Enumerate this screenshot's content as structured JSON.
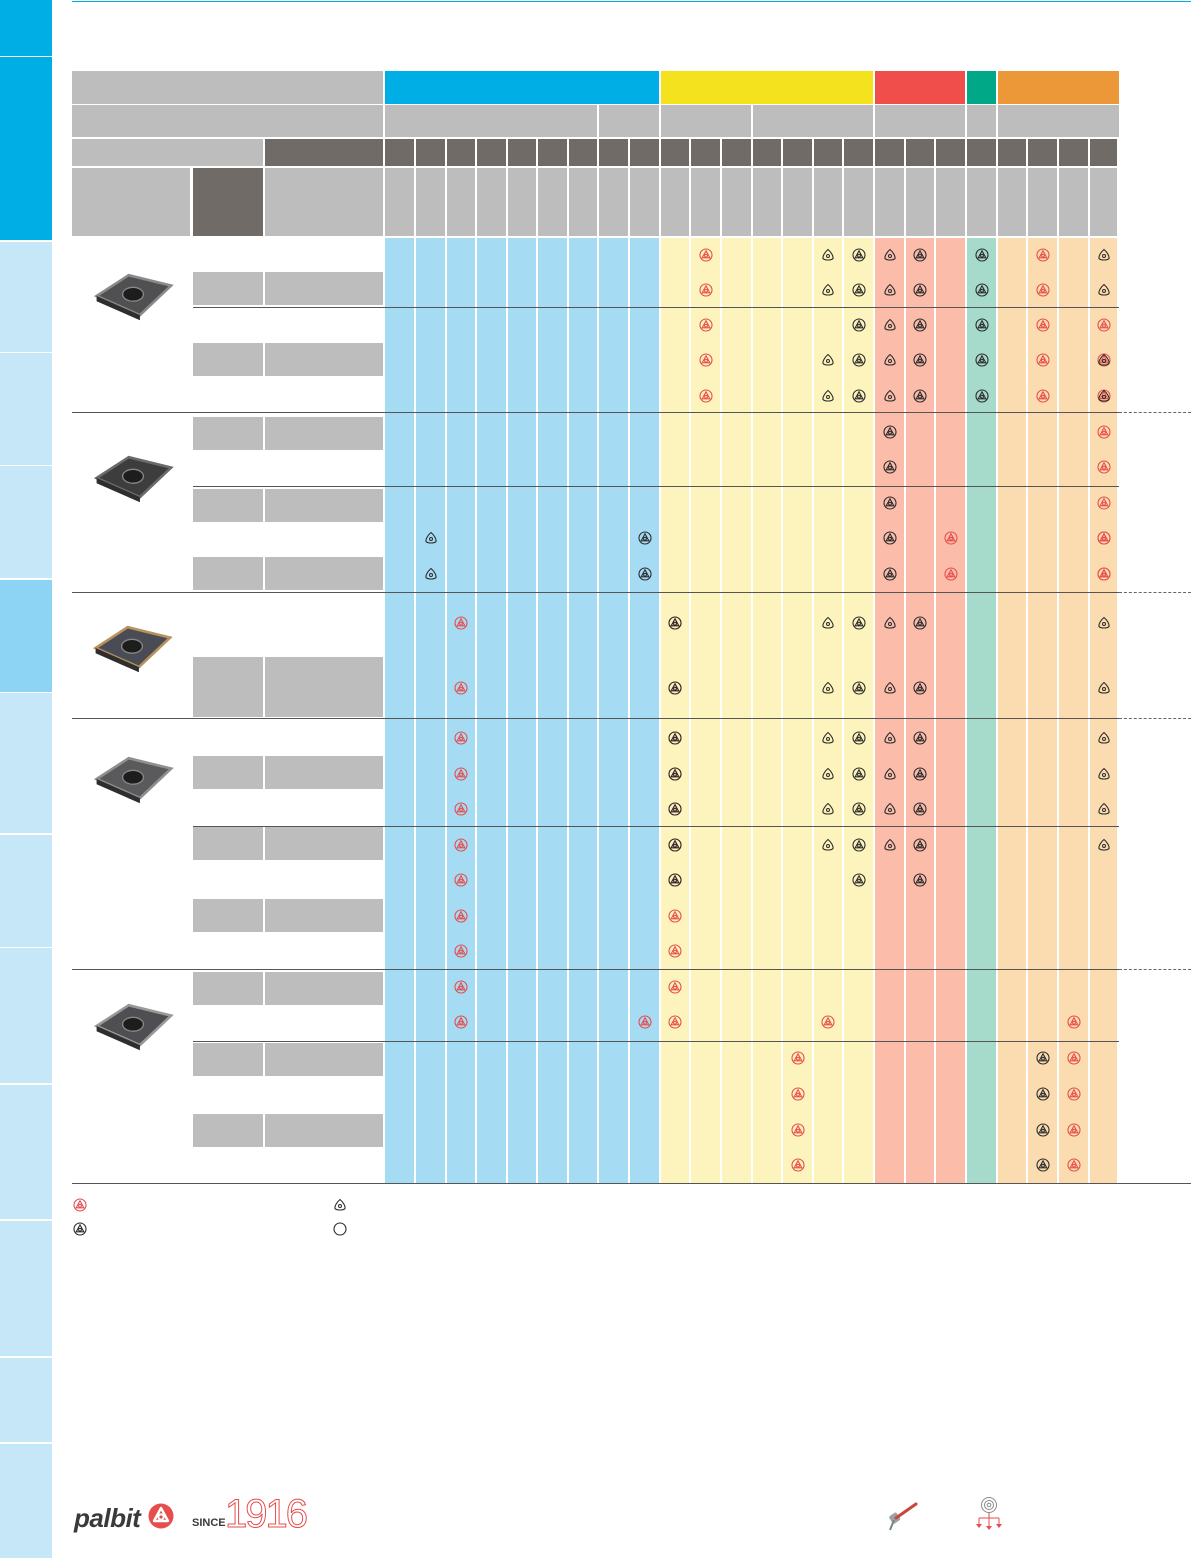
{
  "colors": {
    "side_tab_active": "#00aee6",
    "side_tab_light": "#c6e7f8",
    "side_tab_selected": "#8dd3f3",
    "group_P": "#00aee6",
    "group_M": "#f5e21e",
    "group_K": "#ef4e4b",
    "group_N": "#00a887",
    "group_S": "#ed9838",
    "body_P": "#a6dbf4",
    "body_M": "#fdf4bd",
    "body_K": "#fbbcaa",
    "body_N": "#a6dacb",
    "body_S": "#fbdcb0",
    "symbol_red": "#e64d4d",
    "symbol_black": "#2b2b2b",
    "row_separator": "#555555"
  },
  "grade_matrix": {
    "first_choice_red": [
      [
        10,
        0
      ],
      [
        10,
        1
      ],
      [
        10,
        2
      ],
      [
        10,
        3
      ],
      [
        10,
        4
      ],
      [
        21,
        0
      ],
      [
        21,
        1
      ],
      [
        21,
        2
      ],
      [
        21,
        3
      ],
      [
        21,
        4
      ],
      [
        23,
        2
      ],
      [
        23,
        3
      ],
      [
        23,
        4
      ],
      [
        23,
        5
      ],
      [
        23,
        6
      ],
      [
        23,
        7
      ],
      [
        23,
        8
      ],
      [
        23,
        9
      ],
      [
        9,
        10
      ],
      [
        9,
        11
      ],
      [
        9,
        12
      ],
      [
        9,
        13
      ],
      [
        9,
        14
      ],
      [
        9,
        15
      ],
      [
        9,
        16
      ],
      [
        9,
        17
      ],
      [
        9,
        18
      ],
      [
        9,
        19
      ],
      [
        9,
        20
      ],
      [
        24,
        14
      ],
      [
        24,
        15
      ],
      [
        24,
        16
      ],
      [
        24,
        17
      ],
      [
        24,
        18
      ],
      [
        24,
        19
      ],
      [
        24,
        20
      ],
      [
        2,
        10
      ],
      [
        2,
        11
      ],
      [
        2,
        12
      ],
      [
        2,
        13
      ],
      [
        2,
        14
      ],
      [
        2,
        15
      ],
      [
        2,
        16
      ],
      [
        2,
        17
      ],
      [
        2,
        18
      ],
      [
        2,
        19
      ],
      [
        2,
        20
      ],
      [
        18,
        8
      ],
      [
        18,
        9
      ],
      [
        23,
        8
      ],
      [
        23,
        9
      ],
      [
        8,
        20
      ],
      [
        14,
        20
      ],
      [
        22,
        20
      ],
      [
        13,
        21
      ],
      [
        13,
        22
      ],
      [
        13,
        23
      ],
      [
        13,
        24
      ],
      [
        13,
        25
      ],
      [
        22,
        21
      ],
      [
        22,
        22
      ],
      [
        22,
        23
      ],
      [
        22,
        24
      ],
      [
        22,
        25
      ],
      [
        22,
        26
      ]
    ],
    "black_recommended": [
      [
        15,
        0
      ],
      [
        15,
        1
      ],
      [
        15,
        2
      ],
      [
        15,
        3
      ],
      [
        15,
        4
      ],
      [
        24,
        0
      ],
      [
        24,
        1
      ],
      [
        24,
        2
      ],
      [
        24,
        3
      ],
      [
        24,
        4
      ],
      [
        17,
        0
      ],
      [
        17,
        1
      ],
      [
        17,
        2
      ],
      [
        17,
        3
      ],
      [
        17,
        4
      ],
      [
        19,
        0
      ],
      [
        19,
        1
      ],
      [
        19,
        2
      ],
      [
        19,
        3
      ],
      [
        19,
        4
      ],
      [
        16,
        5
      ],
      [
        16,
        6
      ],
      [
        16,
        7
      ],
      [
        16,
        8
      ],
      [
        16,
        9
      ],
      [
        8,
        8
      ],
      [
        8,
        9
      ],
      [
        9,
        10
      ],
      [
        9,
        11
      ],
      [
        9,
        12
      ],
      [
        9,
        13
      ],
      [
        9,
        14
      ],
      [
        9,
        15
      ],
      [
        9,
        16
      ],
      [
        15,
        10
      ],
      [
        15,
        11
      ],
      [
        15,
        12
      ],
      [
        15,
        13
      ],
      [
        15,
        14
      ],
      [
        15,
        15
      ],
      [
        15,
        16
      ],
      [
        17,
        10
      ],
      [
        17,
        11
      ],
      [
        17,
        12
      ],
      [
        17,
        13
      ],
      [
        17,
        14
      ],
      [
        17,
        15
      ],
      [
        17,
        16
      ],
      [
        21,
        21
      ],
      [
        21,
        22
      ],
      [
        21,
        23
      ],
      [
        21,
        24
      ],
      [
        21,
        25
      ],
      [
        21,
        26
      ]
    ],
    "alternative_outline": [
      [
        14,
        0
      ],
      [
        14,
        1
      ],
      [
        14,
        3
      ],
      [
        14,
        4
      ],
      [
        16,
        0
      ],
      [
        16,
        1
      ],
      [
        16,
        2
      ],
      [
        16,
        3
      ],
      [
        16,
        4
      ],
      [
        23,
        0
      ],
      [
        23,
        1
      ],
      [
        23,
        3
      ],
      [
        23,
        4
      ],
      [
        25,
        0
      ],
      [
        25,
        1
      ],
      [
        25,
        2
      ],
      [
        25,
        3
      ],
      [
        25,
        4
      ],
      [
        1,
        8
      ],
      [
        1,
        9
      ],
      [
        14,
        10
      ],
      [
        14,
        11
      ],
      [
        14,
        12
      ],
      [
        14,
        13
      ],
      [
        14,
        14
      ],
      [
        14,
        15
      ],
      [
        16,
        10
      ],
      [
        16,
        11
      ],
      [
        16,
        12
      ],
      [
        16,
        13
      ],
      [
        16,
        14
      ],
      [
        16,
        15
      ],
      [
        23,
        10
      ],
      [
        23,
        11
      ],
      [
        23,
        12
      ],
      [
        23,
        13
      ],
      [
        23,
        14
      ],
      [
        23,
        15
      ],
      [
        25,
        10
      ],
      [
        25,
        11
      ],
      [
        25,
        12
      ],
      [
        25,
        13
      ],
      [
        25,
        14
      ],
      [
        25,
        15
      ]
    ]
  },
  "footer": {
    "brand": "palbit",
    "since_label": "SINCE",
    "since_year": "1916",
    "icons": [
      "pin-icon",
      "insert-stack-icon"
    ]
  }
}
